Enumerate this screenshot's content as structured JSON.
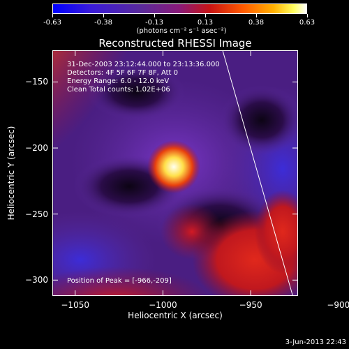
{
  "colorbar": {
    "ticks": [
      "-0.63",
      "-0.38",
      "-0.13",
      "0.13",
      "0.38",
      "0.63"
    ],
    "unit_label": "(photons cm⁻² s⁻¹ asec⁻²)"
  },
  "chart_data": {
    "type": "heatmap",
    "title": "Reconstructed RHESSI Image",
    "xlabel": "Heliocentric X (arcsec)",
    "ylabel": "Heliocentric Y (arcsec)",
    "xlim": [
      -1063,
      -923
    ],
    "ylim": [
      -312,
      -126
    ],
    "x_ticks": [
      -1050,
      -1000,
      -950,
      -900
    ],
    "x_tick_labels": [
      "−1050",
      "−1000",
      "−950",
      "−900"
    ],
    "y_ticks": [
      -150,
      -200,
      -250,
      -300
    ],
    "y_tick_labels": [
      "−150",
      "−200",
      "−250",
      "−300"
    ],
    "colorbar_range": [
      -0.63,
      0.63
    ],
    "peak": [
      -966,
      -209
    ],
    "annotations": {
      "time": "31-Dec-2003 23:12:44.000 to 23:13:36.000",
      "detectors": "Detectors: 4F 5F 6F 7F 8F, Att 0",
      "energy": "Energy Range: 6.0 - 12.0 keV",
      "method": "Clean     Total counts: 1.02E+06",
      "peak_text": "Position of Peak = [-966,-209]"
    },
    "limb_line": [
      [
        -966,
        -126
      ],
      [
        -926,
        -312
      ]
    ]
  },
  "footer": {
    "date": "3-Jun-2013 22:43"
  }
}
